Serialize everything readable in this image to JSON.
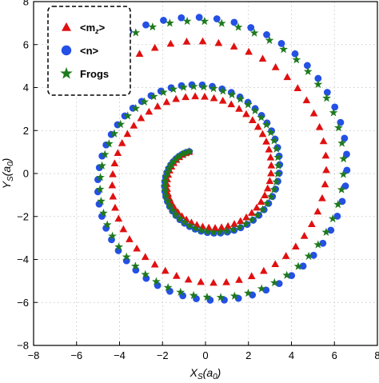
{
  "chart_data": {
    "type": "scatter",
    "title": "",
    "xlabel": {
      "main": "X",
      "sub": "S",
      "unit_open": "(a",
      "unit_sub": "0",
      "unit_close": ")"
    },
    "ylabel": {
      "main": "Y",
      "sub": "S",
      "unit_open": "(a",
      "unit_sub": "0",
      "unit_close": ")"
    },
    "xlim": [
      -8,
      8
    ],
    "ylim": [
      -8,
      8
    ],
    "xticks": [
      "−8",
      "−6",
      "−4",
      "−2",
      "0",
      "2",
      "4",
      "6",
      "8"
    ],
    "yticks": [
      "8",
      "6",
      "4",
      "2",
      "0",
      "−2",
      "−4",
      "−6",
      "−8"
    ],
    "grid": true,
    "legend_position": "top-left",
    "series": [
      {
        "name": "<m",
        "name_sub": "z",
        "name_tail": ">",
        "marker": "triangle",
        "color": "#e01010",
        "spiral": {
          "r_start": 1.35,
          "r_end": 6.55,
          "theta_start_deg": 124,
          "theta_end_deg": 852,
          "center": [
            0.0,
            -0.1
          ],
          "points": 108
        }
      },
      {
        "name": "<n>",
        "marker": "circle",
        "color": "#2450e6",
        "spiral": {
          "r_start": 1.35,
          "r_end": 7.6,
          "theta_start_deg": 124,
          "theta_end_deg": 838,
          "center": [
            0.0,
            -0.1
          ],
          "points": 112
        }
      },
      {
        "name": "Frogs",
        "marker": "star",
        "color": "#1e7a1e",
        "spiral": {
          "r_start": 1.35,
          "r_end": 7.4,
          "theta_start_deg": 124,
          "theta_end_deg": 836,
          "center": [
            0.0,
            -0.1
          ],
          "points": 112
        }
      }
    ]
  }
}
